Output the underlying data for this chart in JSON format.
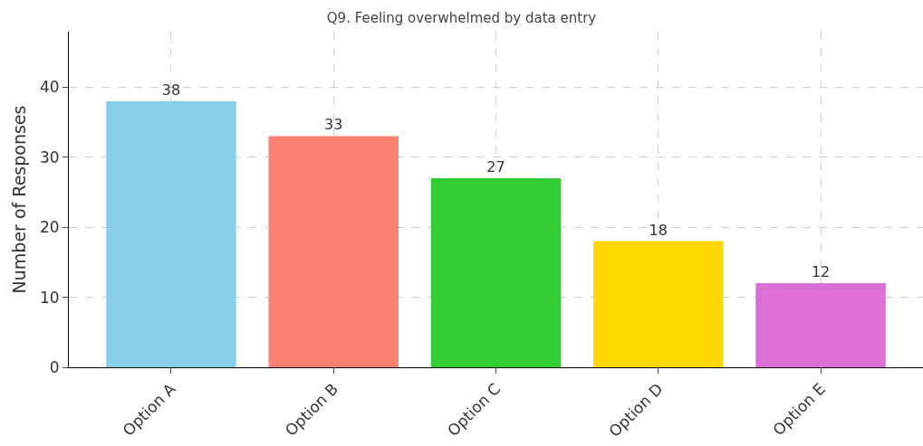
{
  "chart_data": {
    "type": "bar",
    "title": "Q9. Feeling overwhelmed by data entry",
    "ylabel": "Number of Responses",
    "categories": [
      "Option A",
      "Option B",
      "Option C",
      "Option D",
      "Option E"
    ],
    "values": [
      38,
      33,
      27,
      18,
      12
    ],
    "colors": [
      "#87ceeb",
      "#fa8072",
      "#32cd32",
      "#ffd700",
      "#da70d6"
    ],
    "ylim": [
      0,
      47.9
    ],
    "yticks": [
      0,
      10,
      20,
      30,
      40
    ],
    "grid": true,
    "data_labels": true
  }
}
